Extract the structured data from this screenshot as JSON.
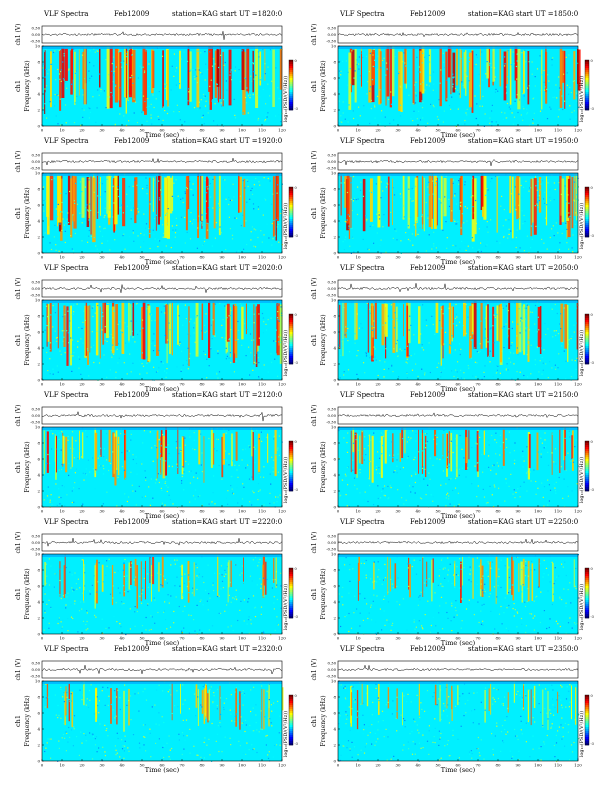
{
  "chart_data": {
    "type": "heatmap",
    "station_label": "station=KAG",
    "ch1_label": "ch1",
    "unit_label": "(V)",
    "ylabel": "Frequency (kHz)",
    "xlabel": "Time (sec)",
    "colorbar_label": "log₁₀(PSD/(V²/Hz))",
    "x_ticks": [
      "0",
      "10",
      "20",
      "30",
      "40",
      "50",
      "60",
      "70",
      "80",
      "90",
      "100",
      "110",
      "120"
    ],
    "y_ticks": [
      "0",
      "2",
      "4",
      "6",
      "8",
      "10"
    ],
    "wave_ticks": [
      "0.30",
      "0.00",
      "-0.30"
    ],
    "cbar_ticks": [
      "0",
      "-3"
    ],
    "xlim": [
      0,
      120
    ],
    "ylim": [
      0,
      10
    ],
    "panels": [
      {
        "title": "VLF Spectra",
        "date": "Feb12009",
        "start": "start UT =1820:0",
        "activity": 0.82
      },
      {
        "title": "VLF Spectra",
        "date": "Feb12009",
        "start": "start UT =1850:0",
        "activity": 0.78
      },
      {
        "title": "VLF Spectra",
        "date": "Feb12009",
        "start": "start UT =1920:0",
        "activity": 0.85
      },
      {
        "title": "VLF Spectra",
        "date": "Feb12009",
        "start": "start UT =1950:0",
        "activity": 0.8
      },
      {
        "title": "VLF Spectra",
        "date": "Feb12009",
        "start": "start UT =2020:0",
        "activity": 0.74
      },
      {
        "title": "VLF Spectra",
        "date": "Feb12009",
        "start": "start UT =2050:0",
        "activity": 0.72
      },
      {
        "title": "VLF Spectra",
        "date": "Feb12009",
        "start": "start UT =2120:0",
        "activity": 0.5
      },
      {
        "title": "VLF Spectra",
        "date": "Feb12009",
        "start": "start UT =2150:0",
        "activity": 0.45
      },
      {
        "title": "VLF Spectra",
        "date": "Feb12009",
        "start": "start UT =2220:0",
        "activity": 0.38
      },
      {
        "title": "VLF Spectra",
        "date": "Feb12009",
        "start": "start UT =2250:0",
        "activity": 0.34
      },
      {
        "title": "VLF Spectra",
        "date": "Feb12009",
        "start": "start UT =2320:0",
        "activity": 0.3
      },
      {
        "title": "VLF Spectra",
        "date": "Feb12009",
        "start": "start UT =2350:0",
        "activity": 0.26
      }
    ]
  }
}
